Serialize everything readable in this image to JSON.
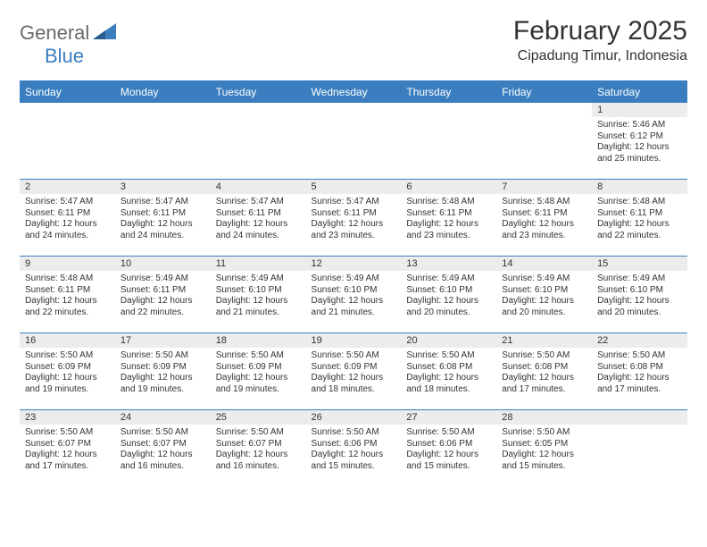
{
  "brand": {
    "word1": "General",
    "word2": "Blue",
    "logo_color": "#3a7ebf",
    "text_gray": "#6a6a6a"
  },
  "header": {
    "month_title": "February 2025",
    "location": "Cipadung Timur, Indonesia"
  },
  "colors": {
    "header_bg": "#3a7ebf",
    "header_text": "#ffffff",
    "border": "#3a7ebf",
    "daynum_bg": "#ececec",
    "body_text": "#333333"
  },
  "day_headers": [
    "Sunday",
    "Monday",
    "Tuesday",
    "Wednesday",
    "Thursday",
    "Friday",
    "Saturday"
  ],
  "labels": {
    "sunrise": "Sunrise:",
    "sunset": "Sunset:",
    "daylight": "Daylight:"
  },
  "weeks": [
    [
      null,
      null,
      null,
      null,
      null,
      null,
      {
        "n": "1",
        "sunrise": "5:46 AM",
        "sunset": "6:12 PM",
        "daylight": "12 hours and 25 minutes."
      }
    ],
    [
      {
        "n": "2",
        "sunrise": "5:47 AM",
        "sunset": "6:11 PM",
        "daylight": "12 hours and 24 minutes."
      },
      {
        "n": "3",
        "sunrise": "5:47 AM",
        "sunset": "6:11 PM",
        "daylight": "12 hours and 24 minutes."
      },
      {
        "n": "4",
        "sunrise": "5:47 AM",
        "sunset": "6:11 PM",
        "daylight": "12 hours and 24 minutes."
      },
      {
        "n": "5",
        "sunrise": "5:47 AM",
        "sunset": "6:11 PM",
        "daylight": "12 hours and 23 minutes."
      },
      {
        "n": "6",
        "sunrise": "5:48 AM",
        "sunset": "6:11 PM",
        "daylight": "12 hours and 23 minutes."
      },
      {
        "n": "7",
        "sunrise": "5:48 AM",
        "sunset": "6:11 PM",
        "daylight": "12 hours and 23 minutes."
      },
      {
        "n": "8",
        "sunrise": "5:48 AM",
        "sunset": "6:11 PM",
        "daylight": "12 hours and 22 minutes."
      }
    ],
    [
      {
        "n": "9",
        "sunrise": "5:48 AM",
        "sunset": "6:11 PM",
        "daylight": "12 hours and 22 minutes."
      },
      {
        "n": "10",
        "sunrise": "5:49 AM",
        "sunset": "6:11 PM",
        "daylight": "12 hours and 22 minutes."
      },
      {
        "n": "11",
        "sunrise": "5:49 AM",
        "sunset": "6:10 PM",
        "daylight": "12 hours and 21 minutes."
      },
      {
        "n": "12",
        "sunrise": "5:49 AM",
        "sunset": "6:10 PM",
        "daylight": "12 hours and 21 minutes."
      },
      {
        "n": "13",
        "sunrise": "5:49 AM",
        "sunset": "6:10 PM",
        "daylight": "12 hours and 20 minutes."
      },
      {
        "n": "14",
        "sunrise": "5:49 AM",
        "sunset": "6:10 PM",
        "daylight": "12 hours and 20 minutes."
      },
      {
        "n": "15",
        "sunrise": "5:49 AM",
        "sunset": "6:10 PM",
        "daylight": "12 hours and 20 minutes."
      }
    ],
    [
      {
        "n": "16",
        "sunrise": "5:50 AM",
        "sunset": "6:09 PM",
        "daylight": "12 hours and 19 minutes."
      },
      {
        "n": "17",
        "sunrise": "5:50 AM",
        "sunset": "6:09 PM",
        "daylight": "12 hours and 19 minutes."
      },
      {
        "n": "18",
        "sunrise": "5:50 AM",
        "sunset": "6:09 PM",
        "daylight": "12 hours and 19 minutes."
      },
      {
        "n": "19",
        "sunrise": "5:50 AM",
        "sunset": "6:09 PM",
        "daylight": "12 hours and 18 minutes."
      },
      {
        "n": "20",
        "sunrise": "5:50 AM",
        "sunset": "6:08 PM",
        "daylight": "12 hours and 18 minutes."
      },
      {
        "n": "21",
        "sunrise": "5:50 AM",
        "sunset": "6:08 PM",
        "daylight": "12 hours and 17 minutes."
      },
      {
        "n": "22",
        "sunrise": "5:50 AM",
        "sunset": "6:08 PM",
        "daylight": "12 hours and 17 minutes."
      }
    ],
    [
      {
        "n": "23",
        "sunrise": "5:50 AM",
        "sunset": "6:07 PM",
        "daylight": "12 hours and 17 minutes."
      },
      {
        "n": "24",
        "sunrise": "5:50 AM",
        "sunset": "6:07 PM",
        "daylight": "12 hours and 16 minutes."
      },
      {
        "n": "25",
        "sunrise": "5:50 AM",
        "sunset": "6:07 PM",
        "daylight": "12 hours and 16 minutes."
      },
      {
        "n": "26",
        "sunrise": "5:50 AM",
        "sunset": "6:06 PM",
        "daylight": "12 hours and 15 minutes."
      },
      {
        "n": "27",
        "sunrise": "5:50 AM",
        "sunset": "6:06 PM",
        "daylight": "12 hours and 15 minutes."
      },
      {
        "n": "28",
        "sunrise": "5:50 AM",
        "sunset": "6:05 PM",
        "daylight": "12 hours and 15 minutes."
      },
      null
    ]
  ]
}
